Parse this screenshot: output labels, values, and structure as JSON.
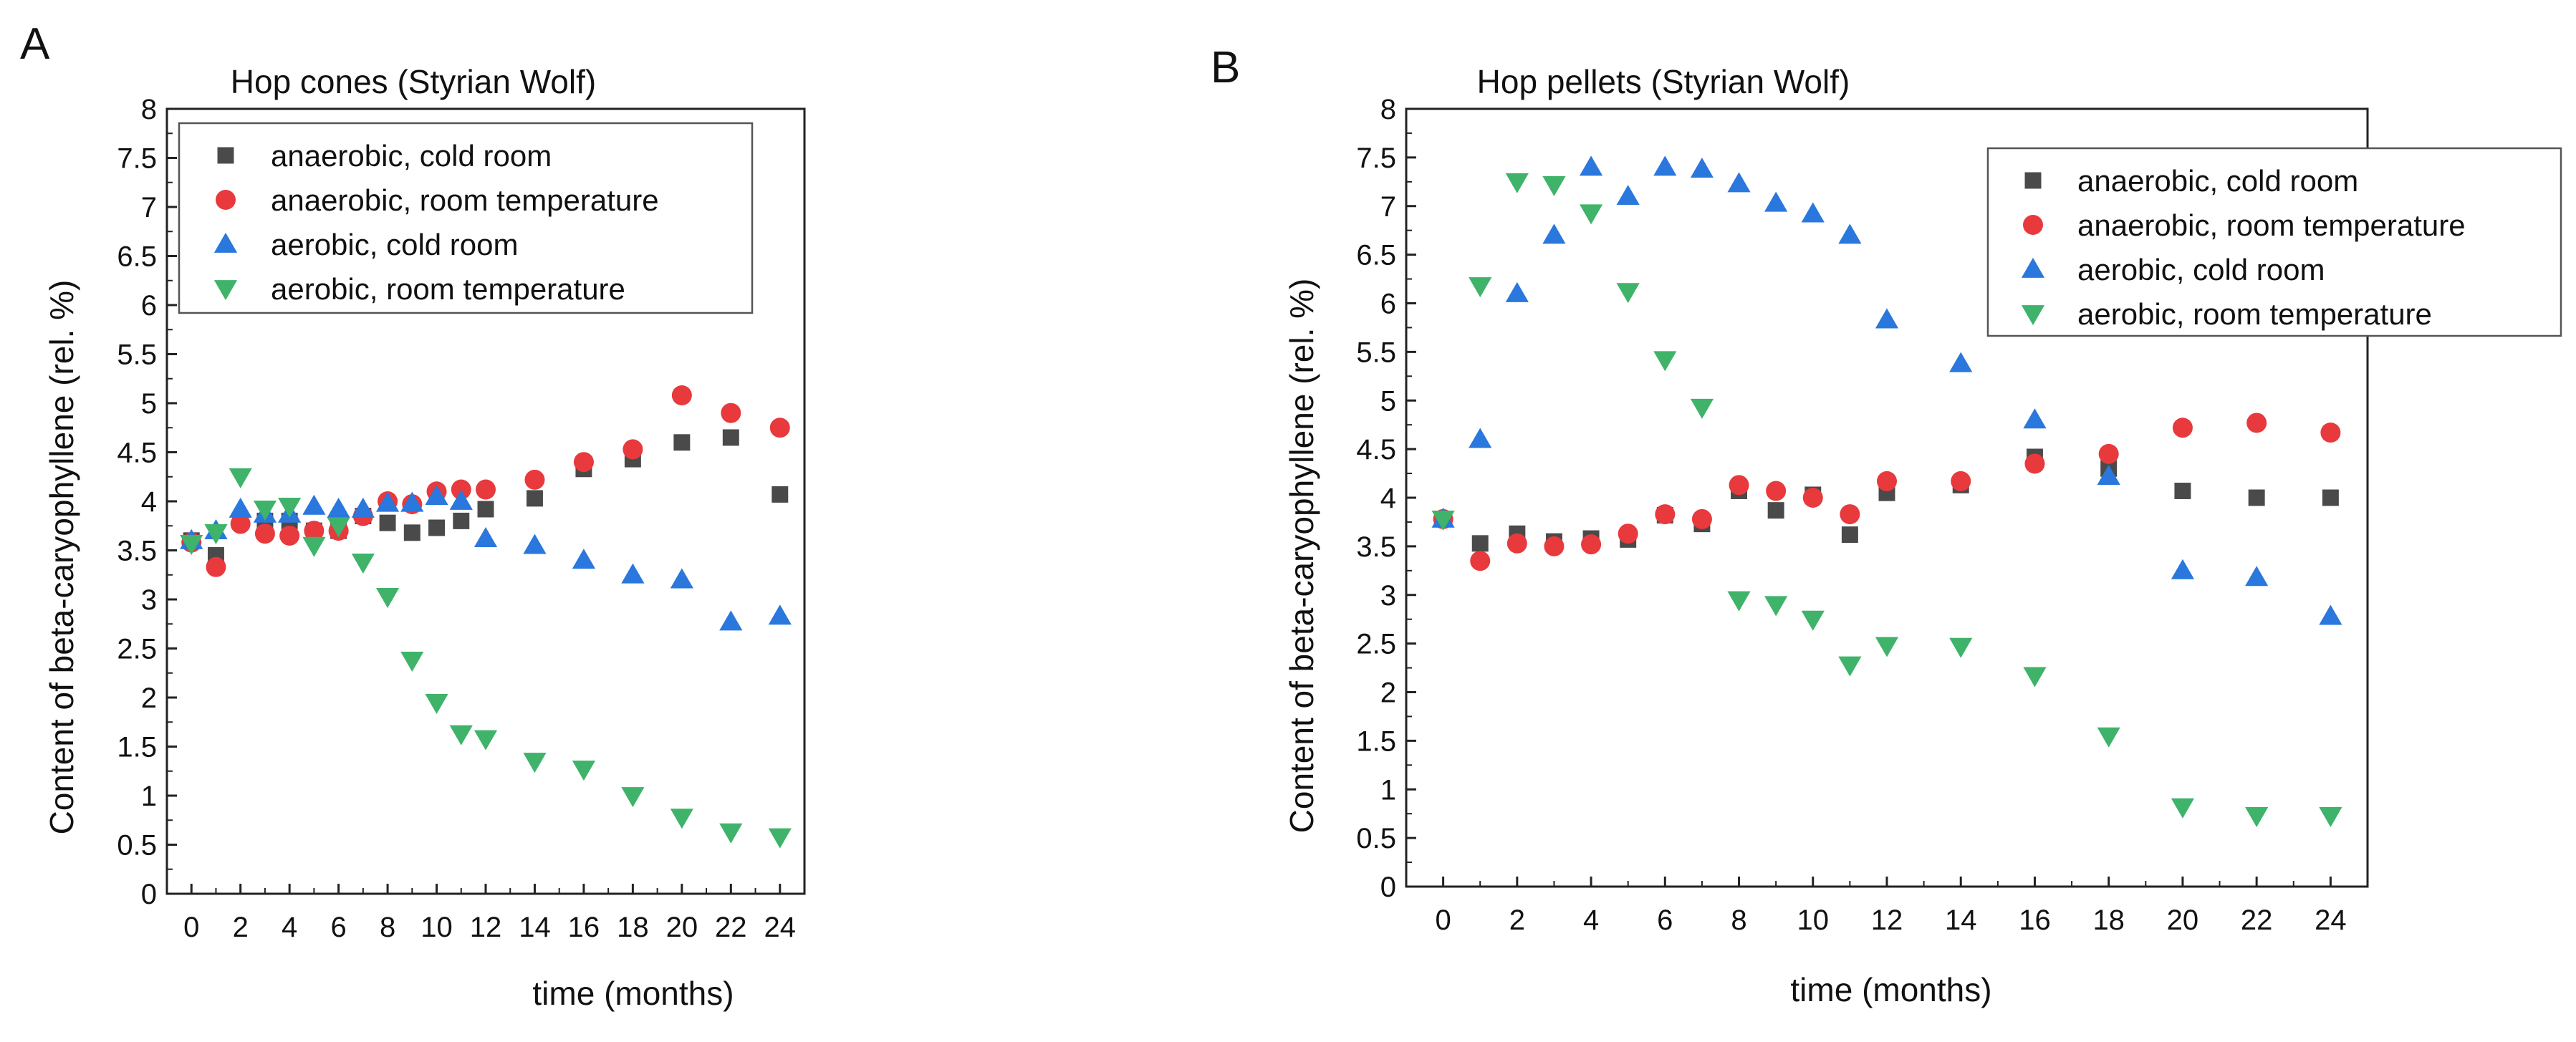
{
  "series_styles": [
    {
      "key": "ac",
      "marker": "square",
      "color": "#4a4a4a"
    },
    {
      "key": "ar",
      "marker": "circle",
      "color": "#e8393d"
    },
    {
      "key": "bc",
      "marker": "triangle-up",
      "color": "#2a77dd"
    },
    {
      "key": "br",
      "marker": "triangle-down",
      "color": "#3fb36a"
    }
  ],
  "chart_data": [
    {
      "panel": "A",
      "type": "scatter",
      "title": "Hop cones (Styrian Wolf)",
      "xlabel": "time (months)",
      "ylabel": "Content of beta-caryophyllene (rel. %)",
      "xlim": [
        -1,
        25
      ],
      "ylim": [
        0,
        8
      ],
      "xticks": [
        "0",
        "2",
        "4",
        "6",
        "8",
        "10",
        "12",
        "14",
        "16",
        "18",
        "20",
        "22",
        "24"
      ],
      "yticks": [
        "0",
        "0.5",
        "1",
        "1.5",
        "2",
        "2.5",
        "3",
        "3.5",
        "4",
        "4.5",
        "5",
        "5.5",
        "6",
        "6.5",
        "7",
        "7.5",
        "8"
      ],
      "legend_position": "top-left",
      "series": [
        {
          "name": "anaerobic, cold room",
          "x": [
            0,
            1,
            2,
            3,
            4,
            5,
            6,
            7,
            8,
            9,
            10,
            11,
            12,
            14,
            16,
            18,
            20,
            22,
            24
          ],
          "y": [
            3.6,
            3.45,
            3.8,
            3.8,
            3.8,
            3.7,
            3.7,
            3.85,
            3.78,
            3.68,
            3.73,
            3.8,
            3.92,
            4.03,
            4.33,
            4.43,
            4.6,
            4.65,
            4.07
          ]
        },
        {
          "name": "anaerobic, room temperature",
          "x": [
            0,
            1,
            2,
            3,
            4,
            5,
            6,
            7,
            8,
            9,
            10,
            11,
            12,
            14,
            16,
            18,
            20,
            22,
            24
          ],
          "y": [
            3.58,
            3.33,
            3.77,
            3.67,
            3.65,
            3.7,
            3.7,
            3.85,
            4.0,
            3.97,
            4.1,
            4.12,
            4.12,
            4.22,
            4.4,
            4.53,
            5.08,
            4.9,
            4.75
          ]
        },
        {
          "name": "aerobic, cold room",
          "x": [
            0,
            1,
            2,
            3,
            4,
            5,
            6,
            7,
            8,
            9,
            10,
            11,
            12,
            14,
            16,
            18,
            20,
            22,
            24
          ],
          "y": [
            3.6,
            3.7,
            3.92,
            3.87,
            3.87,
            3.95,
            3.92,
            3.92,
            3.98,
            3.98,
            4.05,
            4.0,
            3.62,
            3.55,
            3.4,
            3.25,
            3.2,
            2.77,
            2.83
          ]
        },
        {
          "name": "aerobic, room temperature",
          "x": [
            0,
            1,
            2,
            3,
            4,
            5,
            6,
            7,
            8,
            9,
            10,
            11,
            12,
            14,
            16,
            18,
            20,
            22,
            24
          ],
          "y": [
            3.57,
            3.68,
            4.25,
            3.92,
            3.95,
            3.55,
            3.75,
            3.38,
            3.03,
            2.38,
            1.95,
            1.63,
            1.58,
            1.35,
            1.27,
            1.0,
            0.78,
            0.63,
            0.58
          ]
        }
      ]
    },
    {
      "panel": "B",
      "type": "scatter",
      "title": "Hop pellets (Styrian Wolf)",
      "xlabel": "time (months)",
      "ylabel": "Content of beta-caryophyllene (rel. %)",
      "xlim": [
        -1,
        25
      ],
      "ylim": [
        0,
        8
      ],
      "xticks": [
        "0",
        "2",
        "4",
        "6",
        "8",
        "10",
        "12",
        "14",
        "16",
        "18",
        "20",
        "22",
        "24"
      ],
      "yticks": [
        "0",
        "0.5",
        "1",
        "1.5",
        "2",
        "2.5",
        "3",
        "3.5",
        "4",
        "4.5",
        "5",
        "5.5",
        "6",
        "6.5",
        "7",
        "7.5",
        "8"
      ],
      "legend_position": "top-right",
      "series": [
        {
          "name": "anaerobic, cold room",
          "x": [
            0,
            1,
            2,
            3,
            4,
            5,
            6,
            7,
            8,
            9,
            10,
            11,
            12,
            14,
            16,
            18,
            20,
            22,
            24
          ],
          "y": [
            3.78,
            3.53,
            3.63,
            3.55,
            3.58,
            3.57,
            3.82,
            3.73,
            4.07,
            3.87,
            4.03,
            3.62,
            4.05,
            4.13,
            4.42,
            4.3,
            4.07,
            4.0,
            4.0
          ]
        },
        {
          "name": "anaerobic, room temperature",
          "x": [
            0,
            1,
            2,
            3,
            4,
            5,
            6,
            7,
            8,
            9,
            10,
            11,
            12,
            14,
            16,
            18,
            20,
            22,
            24
          ],
          "y": [
            3.78,
            3.35,
            3.53,
            3.5,
            3.52,
            3.63,
            3.83,
            3.78,
            4.13,
            4.07,
            4.0,
            3.83,
            4.17,
            4.17,
            4.35,
            4.45,
            4.72,
            4.77,
            4.67
          ]
        },
        {
          "name": "aerobic, cold room",
          "x": [
            0,
            1,
            2,
            3,
            4,
            5,
            6,
            7,
            8,
            9,
            10,
            11,
            12,
            14,
            16,
            18,
            20,
            22,
            24
          ],
          "y": [
            3.78,
            4.6,
            6.1,
            6.7,
            7.4,
            7.1,
            7.4,
            7.38,
            7.23,
            7.03,
            6.92,
            6.7,
            5.83,
            5.38,
            4.8,
            4.22,
            3.25,
            3.18,
            2.78
          ]
        },
        {
          "name": "aerobic, room temperature",
          "x": [
            0,
            1,
            2,
            3,
            4,
            5,
            6,
            7,
            8,
            9,
            10,
            11,
            12,
            14,
            16,
            18,
            20,
            22,
            24
          ],
          "y": [
            3.78,
            6.18,
            7.25,
            7.22,
            6.93,
            6.12,
            5.42,
            4.93,
            2.95,
            2.9,
            2.75,
            2.28,
            2.48,
            2.47,
            2.17,
            1.55,
            0.82,
            0.73,
            0.73
          ]
        }
      ]
    }
  ]
}
